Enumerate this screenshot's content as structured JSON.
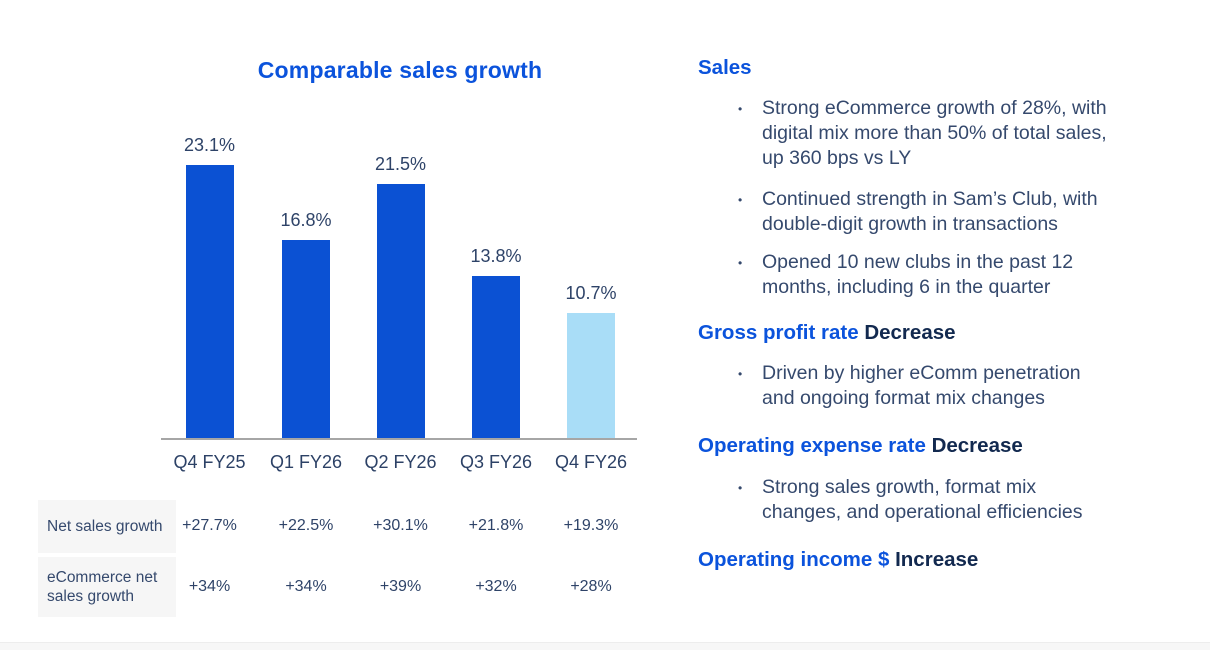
{
  "colors": {
    "accent_blue": "#0b53dc",
    "bar_blue": "#0b51d3",
    "bar_light_blue": "#a9ddf7",
    "status_navy": "#12294f",
    "body_text": "#35496d",
    "axis_line_gray": "#a6a6a6",
    "table_label_bg": "#f6f6f6"
  },
  "chart_data": {
    "type": "bar",
    "title": "Comparable sales growth",
    "categories": [
      "Q4 FY25",
      "Q1 FY26",
      "Q2 FY26",
      "Q3 FY26",
      "Q4 FY26"
    ],
    "values": [
      23.1,
      16.8,
      21.5,
      13.8,
      10.7
    ],
    "data_labels": [
      "23.1%",
      "16.8%",
      "21.5%",
      "13.8%",
      "10.7%"
    ],
    "bar_colors": [
      "#0b51d3",
      "#0b51d3",
      "#0b51d3",
      "#0b51d3",
      "#a9ddf7"
    ],
    "xlabel": "",
    "ylabel": "",
    "ylim": [
      0,
      25
    ],
    "grid": false,
    "legend": "none",
    "table": {
      "rows": [
        {
          "label": "Net sales growth",
          "values": [
            "+27.7%",
            "+22.5%",
            "+30.1%",
            "+21.8%",
            "+19.3%"
          ]
        },
        {
          "label": "eCommerce net\nsales growth",
          "values": [
            "+34%",
            "+34%",
            "+39%",
            "+32%",
            "+28%"
          ]
        }
      ]
    }
  },
  "panel": {
    "bullet_glyph": "•",
    "sections": [
      {
        "heading": "Sales",
        "status": "",
        "bullets": [
          "Strong eCommerce growth of 28%, with\ndigital mix more than 50% of total sales,\nup 360 bps vs LY",
          "Continued strength in Sam’s Club, with\ndouble-digit growth in transactions",
          "Opened 10 new clubs in the past 12\nmonths, including 6 in the quarter"
        ]
      },
      {
        "heading": "Gross profit rate",
        "status": "Decrease",
        "bullets": [
          "Driven by higher eComm penetration\nand ongoing format mix changes"
        ]
      },
      {
        "heading": "Operating expense rate",
        "status": "Decrease",
        "bullets": [
          "Strong sales growth, format mix\nchanges, and operational efficiencies"
        ]
      },
      {
        "heading": "Operating income $",
        "status": "Increase",
        "bullets": []
      }
    ]
  }
}
